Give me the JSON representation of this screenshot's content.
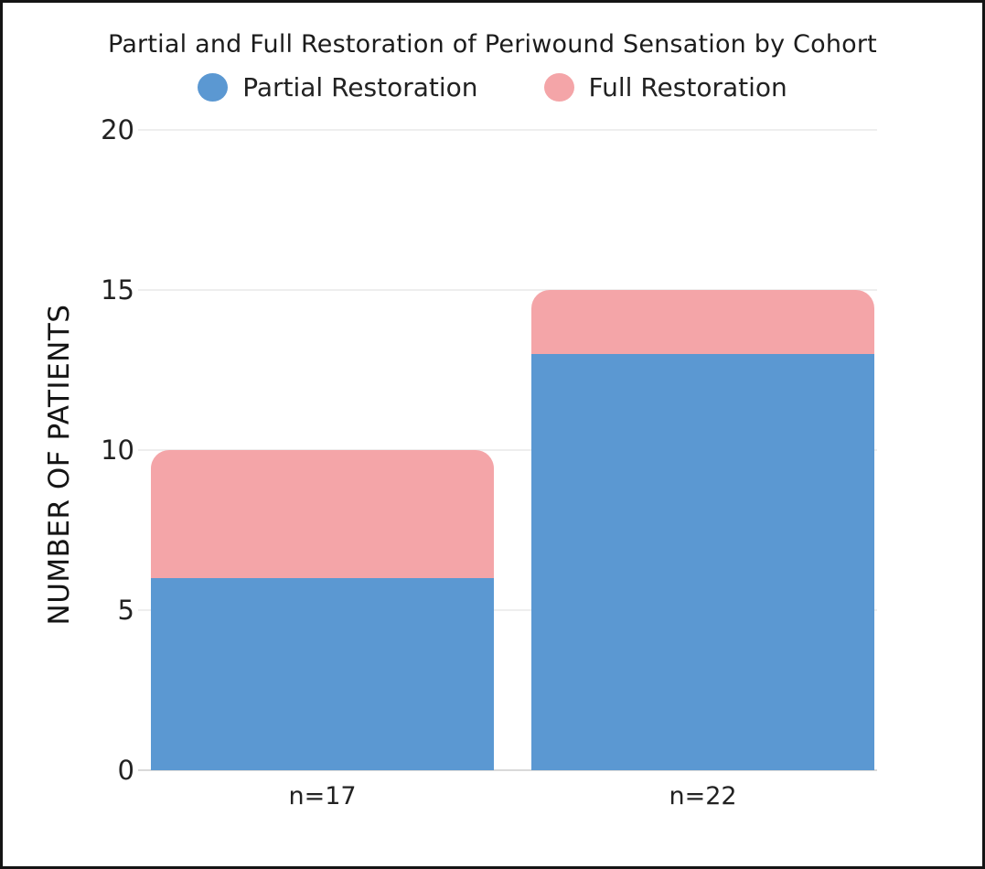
{
  "title": "Partial and Full Restoration of Periwound Sensation by Cohort",
  "legend": {
    "items": [
      {
        "label": "Partial Restoration",
        "color": "#5b98d2"
      },
      {
        "label": "Full Restoration",
        "color": "#f4a5a8"
      }
    ]
  },
  "chart_data": {
    "type": "bar",
    "stacked": true,
    "title": "Partial and Full Restoration of Periwound Sensation by Cohort",
    "categories": [
      "n=17",
      "n=22"
    ],
    "series": [
      {
        "name": "Partial Restoration",
        "color": "#5b98d2",
        "values": [
          6,
          13
        ]
      },
      {
        "name": "Full Restoration",
        "color": "#f4a5a8",
        "values": [
          4,
          2
        ]
      }
    ],
    "totals": [
      10,
      15
    ],
    "xlabel": "",
    "ylabel": "NUMBER OF PATIENTS",
    "ylim": [
      0,
      20
    ],
    "yticks": [
      0,
      5,
      10,
      15,
      20
    ],
    "grid": "horizontal",
    "legend_position": "top"
  },
  "colors": {
    "background": "#ffffff",
    "frame_border": "#141414",
    "gridline": "#eeeeee",
    "axis_baseline": "#d9d9d9",
    "text": "#1c1c1c"
  }
}
